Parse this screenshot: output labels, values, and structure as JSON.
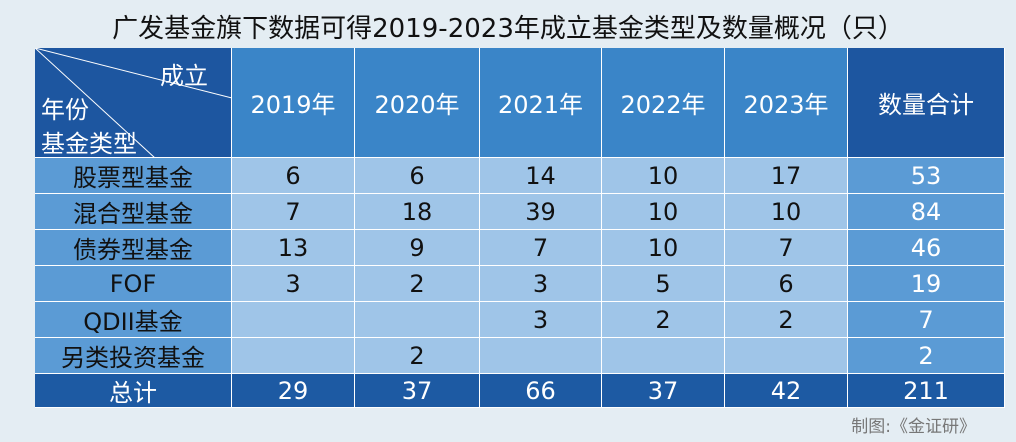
{
  "title": "广发基金旗下数据可得2019-2023年成立基金类型及数量概况（只）",
  "table": {
    "corner": {
      "top": "成立",
      "middle": "年份",
      "bottom": "基金类型"
    },
    "columns": [
      "2019年",
      "2020年",
      "2021年",
      "2022年",
      "2023年",
      "数量合计"
    ],
    "rows": [
      [
        "股票型基金",
        6,
        6,
        14,
        10,
        17,
        53
      ],
      [
        "混合型基金",
        7,
        18,
        39,
        10,
        10,
        84
      ],
      [
        "债券型基金",
        13,
        9,
        7,
        10,
        7,
        46
      ],
      [
        "FOF",
        3,
        2,
        3,
        5,
        6,
        19
      ],
      [
        "QDII基金",
        null,
        null,
        3,
        2,
        2,
        7
      ],
      [
        "另类投资基金",
        null,
        2,
        null,
        null,
        null,
        2
      ],
      [
        "总计",
        29,
        37,
        66,
        37,
        42,
        211
      ]
    ]
  },
  "source": "制图:《金证研》"
}
